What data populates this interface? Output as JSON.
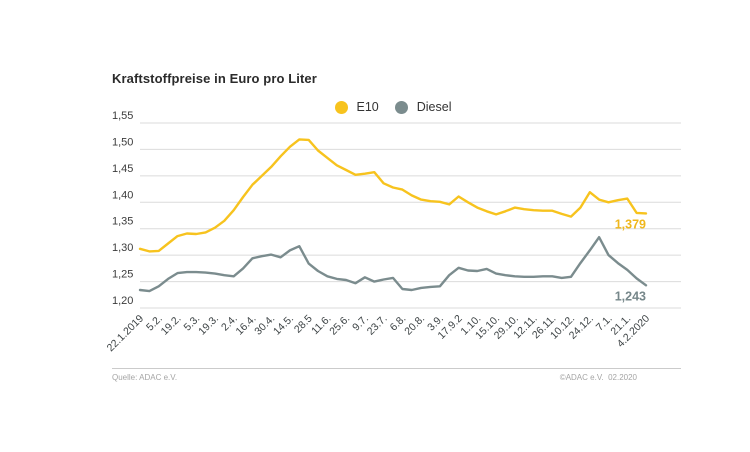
{
  "title": "Kraftstoffpreise in Euro pro Liter",
  "footer": {
    "source": "Quelle: ADAC e.V.",
    "copyright": "©ADAC e.V.  02.2020"
  },
  "colors": {
    "e10": "#F7C31E",
    "e10_label": "#EFB71C",
    "diesel": "#7B8C8E",
    "diesel_label": "#76878A",
    "grid": "#DBDBDB",
    "axis_text": "#3D4345",
    "title_text": "#2B2B2B"
  },
  "chart_data": {
    "type": "line",
    "title": "Kraftstoffpreise in Euro pro Liter",
    "xlabel": "",
    "ylabel": "Euro pro Liter",
    "ylim": [
      1.2,
      1.55
    ],
    "ytick_step": 0.05,
    "ytick_labels": [
      "1,55",
      "1,50",
      "1,45",
      "1,40",
      "1,35",
      "1,30",
      "1,25",
      "1,20"
    ],
    "grid": "horizontal",
    "legend_position": "top-center",
    "points_per_tick": 2,
    "x_tick_labels": [
      "22.1.2019",
      "5.2.",
      "19.2.",
      "5.3.",
      "19.3.",
      "2.4.",
      "16.4.",
      "30.4.",
      "14.5.",
      "28.5",
      "11.6.",
      "25.6.",
      "9.7.",
      "23.7.",
      "6.8.",
      "20.8.",
      "3.9.",
      "17.9.2",
      "1.10.",
      "15.10.",
      "29.10.",
      "12.11.",
      "26.11.",
      "10.12.",
      "24.12.",
      "7.1.",
      "21.1.",
      "4.2.2020"
    ],
    "series": [
      {
        "name": "E10",
        "color": "#F7C31E",
        "label_color": "#EFB71C",
        "end_label": "1,379",
        "values": [
          1.312,
          1.307,
          1.308,
          1.322,
          1.336,
          1.341,
          1.34,
          1.343,
          1.352,
          1.365,
          1.385,
          1.41,
          1.433,
          1.45,
          1.467,
          1.487,
          1.505,
          1.519,
          1.518,
          1.498,
          1.484,
          1.47,
          1.461,
          1.452,
          1.454,
          1.457,
          1.436,
          1.428,
          1.424,
          1.413,
          1.405,
          1.402,
          1.401,
          1.396,
          1.411,
          1.4,
          1.39,
          1.383,
          1.377,
          1.383,
          1.39,
          1.387,
          1.385,
          1.384,
          1.384,
          1.378,
          1.373,
          1.39,
          1.419,
          1.405,
          1.4,
          1.404,
          1.407,
          1.38,
          1.379
        ]
      },
      {
        "name": "Diesel",
        "color": "#7B8C8E",
        "label_color": "#76878A",
        "end_label": "1,243",
        "values": [
          1.234,
          1.232,
          1.241,
          1.255,
          1.266,
          1.268,
          1.268,
          1.267,
          1.265,
          1.262,
          1.26,
          1.275,
          1.294,
          1.298,
          1.301,
          1.296,
          1.309,
          1.317,
          1.284,
          1.27,
          1.26,
          1.255,
          1.253,
          1.247,
          1.258,
          1.25,
          1.254,
          1.257,
          1.236,
          1.234,
          1.238,
          1.24,
          1.241,
          1.262,
          1.276,
          1.271,
          1.27,
          1.274,
          1.265,
          1.262,
          1.26,
          1.259,
          1.259,
          1.26,
          1.26,
          1.257,
          1.259,
          1.285,
          1.309,
          1.334,
          1.3,
          1.285,
          1.272,
          1.256,
          1.243
        ]
      }
    ]
  }
}
